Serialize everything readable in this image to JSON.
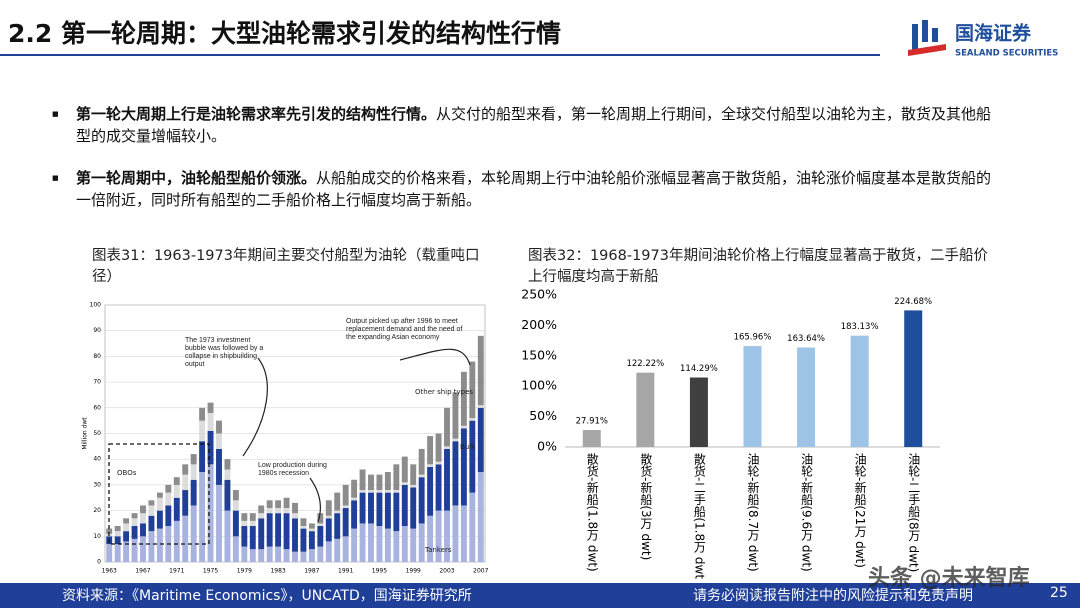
{
  "header": {
    "title": "2.2 第一轮周期：大型油轮需求引发的结构性行情",
    "logo_cn": "国海证券",
    "logo_en": "SEALAND SECURITIES"
  },
  "bullets": [
    {
      "bold": "第一轮大周期上行是油轮需求率先引发的结构性行情。",
      "text": "从交付的船型来看，第一轮周期上行期间，全球交付船型以油轮为主，散货及其他船型的成交量增幅较小。"
    },
    {
      "bold": "第一轮周期中，油轮船型船价领涨。",
      "text": "从船舶成交的价格来看，本轮周期上行中油轮船价涨幅显著高于散货船，油轮涨价幅度基本是散货船的一倍附近，同时所有船型的二手船价格上行幅度均高于新船。"
    }
  ],
  "chart_data": [
    {
      "type": "stacked_bar",
      "title": "图表31：1963-1973年期间主要交付船型为油轮（载重吨口径）",
      "y_label": "Million dwt",
      "categories": [
        "1963",
        null,
        null,
        null,
        "1967",
        null,
        null,
        null,
        "1971",
        null,
        null,
        null,
        "1975",
        null,
        null,
        null,
        "1979",
        null,
        null,
        null,
        "1983",
        null,
        null,
        null,
        "1987",
        null,
        null,
        null,
        "1991",
        null,
        null,
        null,
        "1995",
        null,
        null,
        null,
        "1999",
        null,
        null,
        null,
        "2003",
        null,
        null,
        null,
        "2007"
      ],
      "series": [
        {
          "name": "Tankers",
          "color": "#a9b3e0",
          "values": [
            7,
            7,
            8,
            9,
            10,
            12,
            13,
            14,
            16,
            18,
            22,
            35,
            38,
            30,
            20,
            10,
            6,
            5,
            5,
            6,
            6,
            5,
            4,
            4,
            5,
            6,
            8,
            9,
            10,
            13,
            15,
            15,
            14,
            13,
            12,
            14,
            13,
            15,
            18,
            20,
            20,
            22,
            22,
            27,
            35
          ]
        },
        {
          "name": "Bulk",
          "color": "#1f3f99",
          "values": [
            3,
            3,
            4,
            5,
            5,
            6,
            7,
            8,
            9,
            10,
            10,
            12,
            13,
            14,
            12,
            10,
            8,
            9,
            12,
            13,
            13,
            14,
            13,
            9,
            7,
            8,
            9,
            10,
            11,
            11,
            12,
            12,
            13,
            14,
            15,
            16,
            16,
            18,
            19,
            18,
            24,
            25,
            30,
            28,
            25
          ]
        },
        {
          "name": "OBOs",
          "color": "#dcdcdc",
          "values": [
            1,
            2,
            3,
            3,
            4,
            4,
            5,
            5,
            5,
            6,
            6,
            8,
            7,
            6,
            4,
            4,
            2,
            2,
            2,
            2,
            2,
            2,
            2,
            1,
            1,
            1,
            1,
            1,
            1,
            1,
            1,
            1,
            1,
            1,
            1,
            1,
            1,
            1,
            1,
            1,
            1,
            1,
            1,
            1,
            1
          ]
        },
        {
          "name": "Other ship types",
          "color": "#8c8c8c",
          "values": [
            2,
            2,
            2,
            2,
            3,
            2,
            2,
            3,
            3,
            4,
            4,
            5,
            4,
            5,
            4,
            4,
            3,
            3,
            3,
            3,
            3,
            4,
            4,
            3,
            2,
            4,
            6,
            7,
            8,
            7,
            8,
            6,
            6,
            7,
            10,
            10,
            8,
            10,
            11,
            11,
            15,
            18,
            21,
            22,
            27
          ]
        }
      ],
      "ylim": [
        0,
        100
      ],
      "yticks": [
        0,
        10,
        20,
        30,
        40,
        50,
        60,
        70,
        80,
        90,
        100
      ],
      "grid": true,
      "annotations": [
        "The 1973 investment bubble was followed by a collapse in shipbuilding output",
        "Output picked up after 1996 to meet replacement demand and the need of the expanding Asian economy",
        "Low production during 1980s recession"
      ]
    },
    {
      "type": "bar",
      "title": "图表32：1968-1973年期间油轮价格上行幅度显著高于散货，二手船价上行幅度均高于新船",
      "categories": [
        "散货-新船(1.8万 dwt)",
        "散货-新船(3万 dwt)",
        "散货-二手船(1.8万 dwt)",
        "油轮-新船(8.7万 dwt)",
        "油轮-新船(9.6万 dwt)",
        "油轮-新船(21万 dwt)",
        "油轮-二手船(8万 dwt)"
      ],
      "values": [
        27.91,
        122.22,
        114.29,
        165.96,
        163.64,
        183.13,
        224.68
      ],
      "value_labels": [
        "27.91%",
        "122.22%",
        "114.29%",
        "165.96%",
        "163.64%",
        "183.13%",
        "224.68%"
      ],
      "colors": [
        "#a6a6a6",
        "#a6a6a6",
        "#404040",
        "#9dc3e6",
        "#9dc3e6",
        "#9dc3e6",
        "#1f4e9c"
      ],
      "ylim": [
        0,
        250
      ],
      "yticks": [
        {
          "value": 0,
          "label": "0%"
        },
        {
          "value": 50,
          "label": "50%"
        },
        {
          "value": 100,
          "label": "100%"
        },
        {
          "value": 150,
          "label": "150%"
        },
        {
          "value": 200,
          "label": "200%"
        },
        {
          "value": 250,
          "label": "250%"
        }
      ]
    }
  ],
  "footer": {
    "source": "资料来源：《Maritime Economics》，UNCATD，国海证券研究所",
    "disclaimer": "请务必阅读报告附注中的风险提示和免责声明",
    "page": "25",
    "watermark": "头条 @未来智库"
  }
}
